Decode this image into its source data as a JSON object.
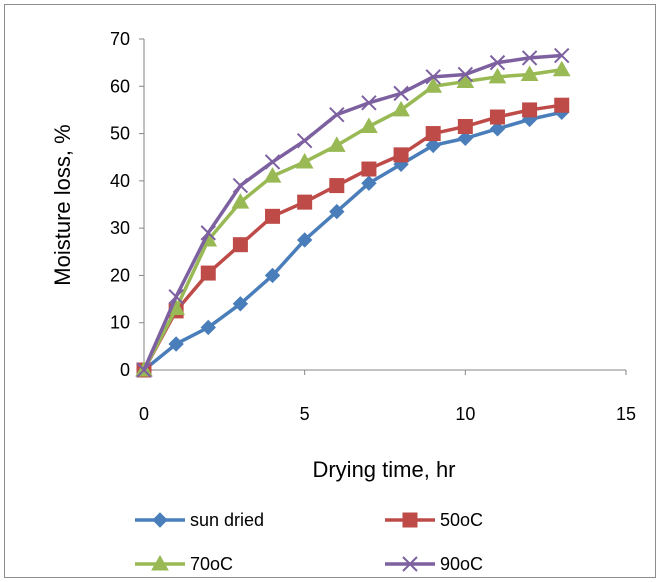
{
  "chart_data": {
    "type": "line",
    "title": "",
    "xlabel": "Drying time, hr",
    "ylabel": "Moisture loss, %",
    "xlim": [
      0,
      15
    ],
    "ylim": [
      0,
      70
    ],
    "x_ticks": [
      "0",
      "5",
      "10",
      "15"
    ],
    "y_ticks": [
      "0",
      "10",
      "20",
      "30",
      "40",
      "50",
      "60",
      "70"
    ],
    "grid": false,
    "legend_position": "bottom",
    "x": [
      0,
      1,
      2,
      3,
      4,
      5,
      6,
      7,
      8,
      9,
      10,
      11,
      12,
      13
    ],
    "series": [
      {
        "name": "sun dried",
        "color": "#4a7ebb",
        "marker": "diamond",
        "values": [
          0,
          5.5,
          9,
          14,
          20,
          27.5,
          33.5,
          39.5,
          43.5,
          47.5,
          49,
          51,
          53,
          54.5
        ]
      },
      {
        "name": "50oC",
        "color": "#be4b48",
        "marker": "square",
        "values": [
          0,
          12.5,
          20.5,
          26.5,
          32.5,
          35.5,
          39,
          42.5,
          45.5,
          50,
          51.5,
          53.5,
          55,
          56
        ]
      },
      {
        "name": "70oC",
        "color": "#98b954",
        "marker": "triangle",
        "values": [
          0,
          13,
          27.5,
          35.5,
          41,
          44,
          47.5,
          51.5,
          55,
          60,
          61,
          62,
          62.5,
          63.5
        ]
      },
      {
        "name": "90oC",
        "color": "#7d60a0",
        "marker": "x",
        "values": [
          0,
          15.5,
          29,
          39,
          44,
          48.5,
          54,
          56.5,
          58.5,
          62,
          62.5,
          65,
          66,
          66.5
        ]
      }
    ]
  }
}
